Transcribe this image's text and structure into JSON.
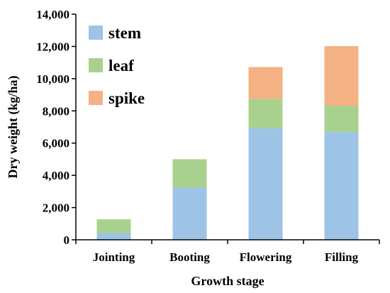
{
  "chart_data": {
    "type": "stacked-bar",
    "title": "",
    "xlabel": "Growth stage",
    "ylabel": "Dry weight (kg/ha)",
    "ylim": [
      0,
      14000
    ],
    "yticks": [
      0,
      2000,
      4000,
      6000,
      8000,
      10000,
      12000,
      14000
    ],
    "ytick_labels": [
      "0",
      "2,000",
      "4,000",
      "6,000",
      "8,000",
      "10,000",
      "12,000",
      "14,000"
    ],
    "categories": [
      "Jointing",
      "Booting",
      "Flowering",
      "Filling"
    ],
    "series": [
      {
        "name": "stem",
        "color": "#9dc3e6",
        "values": [
          420,
          3250,
          6920,
          6700
        ]
      },
      {
        "name": "leaf",
        "color": "#a9d18e",
        "values": [
          850,
          1750,
          1830,
          1620
        ]
      },
      {
        "name": "spike",
        "color": "#f4b183",
        "values": [
          0,
          0,
          1970,
          3700
        ]
      }
    ],
    "legend_position": "top-left",
    "grid": false
  }
}
